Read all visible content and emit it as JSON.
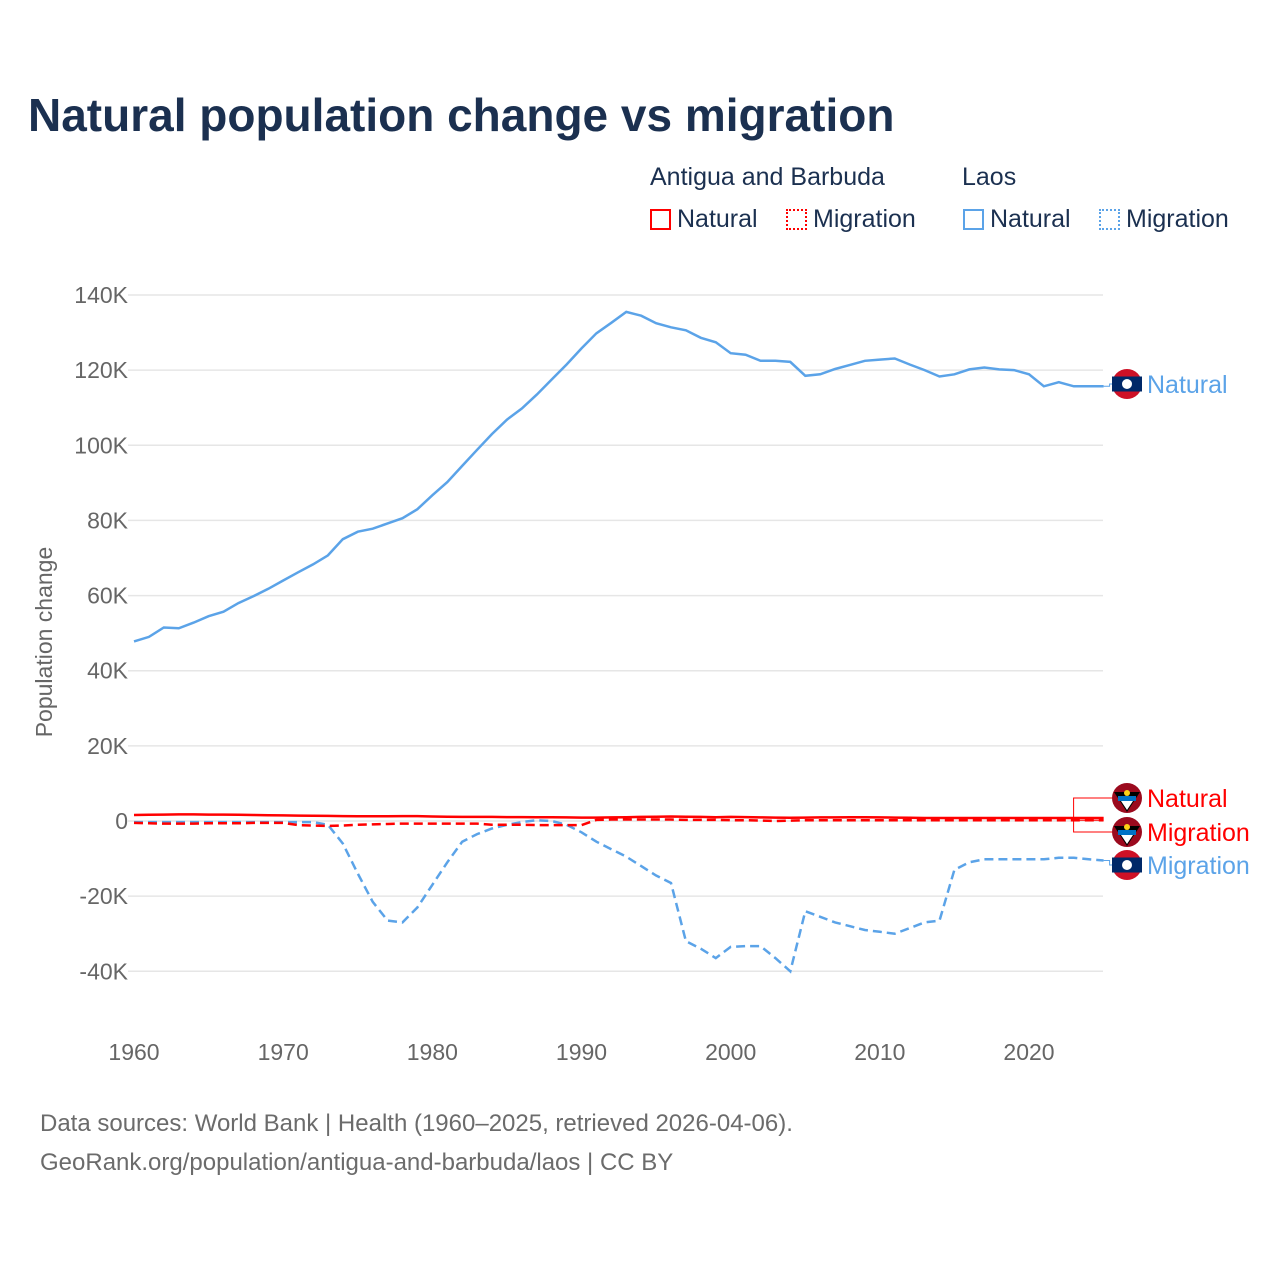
{
  "title": "Natural population change vs migration",
  "legend": {
    "groups": [
      {
        "name": "Antigua and Barbuda",
        "items": [
          "Natural",
          "Migration"
        ],
        "color": "#ff0000"
      },
      {
        "name": "Laos",
        "items": [
          "Natural",
          "Migration"
        ],
        "color": "#5ba3e8"
      }
    ]
  },
  "footer": {
    "line1": "Data sources: World Bank | Health (1960–2025, retrieved 2026-04-06).",
    "line2": "GeoRank.org/population/antigua-and-barbuda/laos | CC BY"
  },
  "chart_data": {
    "type": "line",
    "title": "Natural population change vs migration",
    "xlabel": "",
    "ylabel": "Population change",
    "xlim": [
      1960,
      2025
    ],
    "ylim": [
      -45000,
      145000
    ],
    "x_ticks": [
      "1960",
      "1970",
      "1980",
      "1990",
      "2000",
      "2010",
      "2020"
    ],
    "y_ticks": [
      "140K",
      "120K",
      "100K",
      "80K",
      "60K",
      "40K",
      "20K",
      "0",
      "-20K",
      "-40K"
    ],
    "y_tick_values": [
      140000,
      120000,
      100000,
      80000,
      60000,
      40000,
      20000,
      0,
      -20000,
      -40000
    ],
    "grid": true,
    "x": [
      1960,
      1961,
      1962,
      1963,
      1964,
      1965,
      1966,
      1967,
      1968,
      1969,
      1970,
      1971,
      1972,
      1973,
      1974,
      1975,
      1976,
      1977,
      1978,
      1979,
      1980,
      1981,
      1982,
      1983,
      1984,
      1985,
      1986,
      1987,
      1988,
      1989,
      1990,
      1991,
      1992,
      1993,
      1994,
      1995,
      1996,
      1997,
      1998,
      1999,
      2000,
      2001,
      2002,
      2003,
      2004,
      2005,
      2006,
      2007,
      2008,
      2009,
      2010,
      2011,
      2012,
      2013,
      2014,
      2015,
      2016,
      2017,
      2018,
      2019,
      2020,
      2021,
      2022,
      2023,
      2024,
      2025
    ],
    "series": [
      {
        "name": "Laos Natural",
        "end_label": "Natural",
        "color": "#5ba3e8",
        "dash": "solid",
        "values": [
          47800,
          49000,
          51500,
          51300,
          52800,
          54500,
          55700,
          58000,
          59800,
          61800,
          64000,
          66200,
          68300,
          70700,
          75000,
          77000,
          77800,
          79200,
          80600,
          83000,
          86700,
          90200,
          94500,
          98800,
          103000,
          106800,
          109800,
          113500,
          117500,
          121500,
          125800,
          129800,
          132600,
          135500,
          134500,
          132500,
          131400,
          130600,
          128600,
          127400,
          124500,
          124100,
          122500,
          122500,
          122200,
          118500,
          118900,
          120300,
          121400,
          122500,
          122800,
          123100,
          121500,
          120000,
          118300,
          118900,
          120200,
          120700,
          120200,
          120000,
          118900,
          115700,
          116800,
          115700,
          115700,
          115700
        ]
      },
      {
        "name": "Laos Migration",
        "end_label": "Migration",
        "color": "#5ba3e8",
        "dash": "dashed",
        "values": [
          -300,
          -300,
          -300,
          -300,
          -300,
          -300,
          -300,
          -300,
          -300,
          -300,
          -300,
          -300,
          -300,
          -1000,
          -6000,
          -14000,
          -21500,
          -26500,
          -27000,
          -23000,
          -17000,
          -11000,
          -5500,
          -3500,
          -2000,
          -1000,
          -300,
          200,
          0,
          -1000,
          -3000,
          -5500,
          -7500,
          -9500,
          -12000,
          -14500,
          -16500,
          -32000,
          -34000,
          -36500,
          -33500,
          -33300,
          -33300,
          -36500,
          -40000,
          -24000,
          -25500,
          -27000,
          -28000,
          -29000,
          -29500,
          -30000,
          -28500,
          -27000,
          -26500,
          -13000,
          -11000,
          -10200,
          -10200,
          -10200,
          -10200,
          -10200,
          -9800,
          -9800,
          -10200,
          -10500
        ]
      },
      {
        "name": "Antigua and Barbuda Natural",
        "end_label": "Natural",
        "color": "#ff0000",
        "dash": "solid",
        "values": [
          1600,
          1650,
          1700,
          1750,
          1750,
          1700,
          1700,
          1650,
          1600,
          1550,
          1500,
          1450,
          1400,
          1350,
          1300,
          1250,
          1250,
          1250,
          1300,
          1300,
          1200,
          1150,
          1100,
          1100,
          1100,
          1050,
          1050,
          1000,
          1000,
          950,
          900,
          900,
          950,
          1000,
          1100,
          1150,
          1200,
          1150,
          1100,
          1000,
          1100,
          1050,
          950,
          900,
          850,
          900,
          950,
          950,
          1000,
          1000,
          950,
          900,
          850,
          800,
          800,
          800,
          800,
          800,
          800,
          800,
          800,
          800,
          800,
          800,
          800,
          800
        ]
      },
      {
        "name": "Antigua and Barbuda Migration",
        "end_label": "Migration",
        "color": "#ff0000",
        "dash": "dashed",
        "values": [
          -500,
          -600,
          -700,
          -700,
          -700,
          -600,
          -600,
          -600,
          -500,
          -500,
          -500,
          -1100,
          -1200,
          -1300,
          -1200,
          -1000,
          -900,
          -800,
          -700,
          -700,
          -700,
          -700,
          -700,
          -700,
          -1000,
          -1000,
          -1000,
          -1100,
          -1100,
          -1100,
          -1100,
          300,
          400,
          400,
          400,
          400,
          400,
          300,
          300,
          300,
          200,
          200,
          100,
          0,
          100,
          200,
          200,
          200,
          200,
          200,
          200,
          200,
          200,
          200,
          200,
          200,
          200,
          200,
          200,
          200,
          200,
          200,
          200,
          200,
          200,
          200
        ]
      }
    ]
  }
}
